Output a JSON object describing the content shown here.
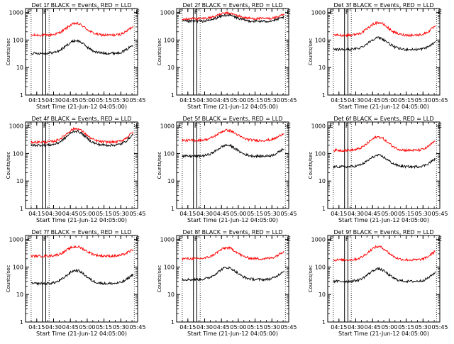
{
  "common": {
    "ylabel": "Counts/sec",
    "xlabel": "Start Time (21-Jun-12 04:05:00)",
    "xticks": [
      "04:15",
      "04:30",
      "04:45",
      "05:00",
      "05:15",
      "05:30",
      "05:45"
    ],
    "xtick_values_min": [
      10,
      25,
      40,
      55,
      70,
      85,
      100
    ],
    "xlim_min": [
      0,
      100
    ],
    "yticks": [
      "1",
      "10",
      "100",
      "1000"
    ],
    "ylim": [
      1,
      1400
    ],
    "yscale": "log",
    "marker_E": "E",
    "marker_F": "F",
    "colors": {
      "events": "#000000",
      "lld": "#ff0000"
    }
  },
  "chart_data": [
    {
      "type": "line",
      "title": "Det 1f BLACK = Events, RED = LLD",
      "series": [
        {
          "color": "#ff0000",
          "base": 150,
          "peak": 400,
          "end": 380
        },
        {
          "color": "#000000",
          "base": 33,
          "peak": 95,
          "end": 80
        }
      ]
    },
    {
      "type": "line",
      "title": "Det 2f BLACK = Events, RED = LLD",
      "series": [
        {
          "color": "#ff0000",
          "base": 600,
          "peak": 950,
          "end": 900
        },
        {
          "color": "#000000",
          "base": 480,
          "peak": 800,
          "end": 750
        }
      ]
    },
    {
      "type": "line",
      "title": "Det 3f BLACK = Events, RED = LLD",
      "series": [
        {
          "color": "#ff0000",
          "base": 150,
          "peak": 430,
          "end": 380
        },
        {
          "color": "#000000",
          "base": 45,
          "peak": 120,
          "end": 95
        }
      ]
    },
    {
      "type": "line",
      "title": "Det 4f BLACK = Events, RED = LLD",
      "series": [
        {
          "color": "#ff0000",
          "base": 260,
          "peak": 800,
          "end": 750
        },
        {
          "color": "#000000",
          "base": 200,
          "peak": 650,
          "end": 600
        }
      ]
    },
    {
      "type": "line",
      "title": "Det 5f BLACK = Events, RED = LLD",
      "series": [
        {
          "color": "#ff0000",
          "base": 300,
          "peak": 700,
          "end": 650
        },
        {
          "color": "#000000",
          "base": 80,
          "peak": 200,
          "end": 180
        }
      ]
    },
    {
      "type": "line",
      "title": "Det 6f BLACK = Events, RED = LLD",
      "series": [
        {
          "color": "#ff0000",
          "base": 130,
          "peak": 400,
          "end": 350
        },
        {
          "color": "#000000",
          "base": 33,
          "peak": 85,
          "end": 75
        }
      ]
    },
    {
      "type": "line",
      "title": "Det 7f BLACK = Events, RED = LLD",
      "series": [
        {
          "color": "#ff0000",
          "base": 250,
          "peak": 550,
          "end": 500
        },
        {
          "color": "#000000",
          "base": 25,
          "peak": 75,
          "end": 65
        }
      ]
    },
    {
      "type": "line",
      "title": "Det 8f BLACK = Events, RED = LLD",
      "series": [
        {
          "color": "#ff0000",
          "base": 200,
          "peak": 500,
          "end": 450
        },
        {
          "color": "#000000",
          "base": 35,
          "peak": 95,
          "end": 90
        }
      ]
    },
    {
      "type": "line",
      "title": "Det 9f BLACK = Events, RED = LLD",
      "series": [
        {
          "color": "#ff0000",
          "base": 180,
          "peak": 550,
          "end": 450
        },
        {
          "color": "#000000",
          "base": 30,
          "peak": 85,
          "end": 75
        }
      ]
    }
  ]
}
